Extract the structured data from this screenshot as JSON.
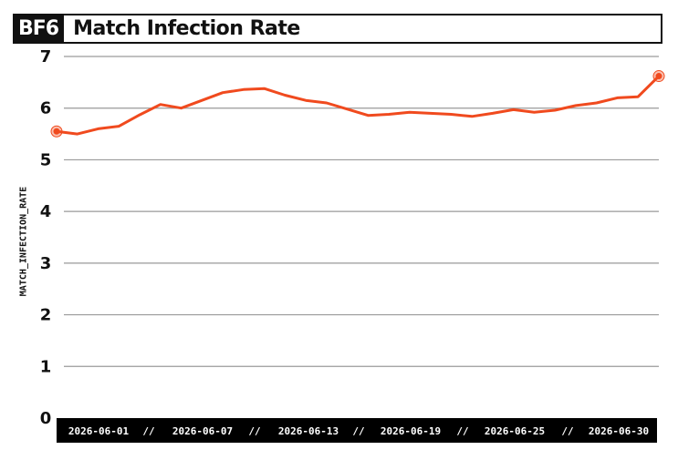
{
  "header": {
    "logo": "BF6",
    "title": "Match Infection Rate"
  },
  "colors": {
    "line": "#f04a1e",
    "grid": "#9a9a9a",
    "axis_bar": "#000000"
  },
  "chart_data": {
    "type": "line",
    "title": "Match Infection Rate",
    "ylabel": "MATCH_INFECTION_RATE",
    "xlabel": "",
    "ylim": [
      0,
      7
    ],
    "yticks": [
      0,
      1,
      2,
      3,
      4,
      5,
      6,
      7
    ],
    "xtick_labels": [
      "2026-06-01",
      "2026-06-07",
      "2026-06-13",
      "2026-06-19",
      "2026-06-25",
      "2026-06-30"
    ],
    "xtick_separator": "//",
    "grid": true,
    "x": [
      "2026-06-01",
      "2026-06-02",
      "2026-06-03",
      "2026-06-04",
      "2026-06-05",
      "2026-06-06",
      "2026-06-07",
      "2026-06-08",
      "2026-06-09",
      "2026-06-10",
      "2026-06-11",
      "2026-06-12",
      "2026-06-13",
      "2026-06-14",
      "2026-06-15",
      "2026-06-16",
      "2026-06-17",
      "2026-06-18",
      "2026-06-19",
      "2026-06-20",
      "2026-06-21",
      "2026-06-22",
      "2026-06-23",
      "2026-06-24",
      "2026-06-25",
      "2026-06-26",
      "2026-06-27",
      "2026-06-28",
      "2026-06-29",
      "2026-06-30"
    ],
    "series": [
      {
        "values": [
          5.55,
          5.5,
          5.6,
          5.65,
          5.87,
          6.07,
          6.0,
          6.15,
          6.3,
          6.36,
          6.38,
          6.25,
          6.15,
          6.1,
          5.98,
          5.86,
          5.88,
          5.92,
          5.9,
          5.88,
          5.84,
          5.9,
          5.97,
          5.92,
          5.96,
          6.05,
          6.1,
          6.2,
          6.22,
          6.62
        ]
      }
    ],
    "markers": [
      0,
      29
    ]
  }
}
